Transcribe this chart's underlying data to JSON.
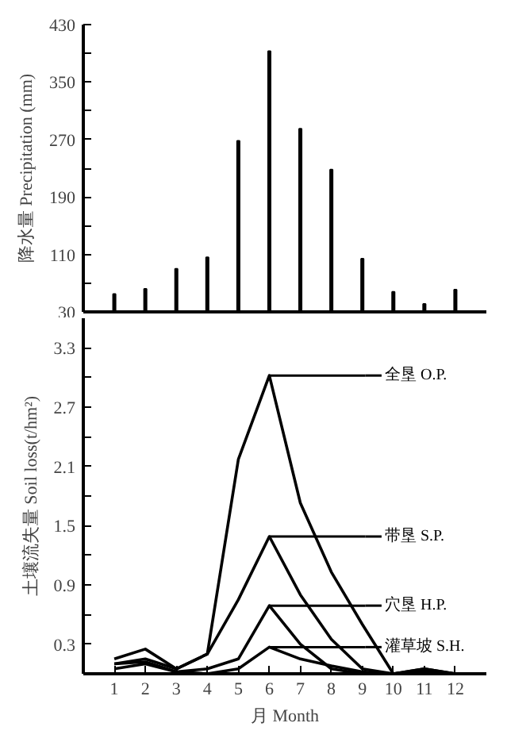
{
  "chart_data": [
    {
      "type": "bar",
      "ylabel": "降水量 Precipitation (mm)",
      "x": [
        1,
        2,
        3,
        4,
        5,
        6,
        7,
        8,
        9,
        10,
        11,
        12
      ],
      "values": [
        55,
        62,
        90,
        106,
        268,
        393,
        285,
        228,
        104,
        58,
        41,
        61
      ],
      "color": "#000000",
      "xlim": [
        0,
        13
      ],
      "ylim": [
        30,
        430
      ],
      "yticks": [
        30,
        {
          "value": 70,
          "label": null
        },
        110,
        {
          "value": 150,
          "label": null
        },
        190,
        {
          "value": 230,
          "label": null
        },
        270,
        {
          "value": 310,
          "label": null
        },
        350,
        {
          "value": 390,
          "label": null
        },
        430
      ],
      "tick_labels": "y",
      "grid": false,
      "legend": false
    },
    {
      "type": "line",
      "xlabel": "月 Month",
      "ylabel": "土壤流失量 Soil loss(t/hm²)",
      "x": [
        1,
        2,
        3,
        4,
        5,
        6,
        7,
        8,
        9,
        10,
        11,
        12
      ],
      "series": [
        {
          "name": "全垦 O.P.",
          "color": "#000000",
          "values": [
            0.15,
            0.25,
            0.05,
            0.2,
            2.17,
            3.02,
            1.73,
            1.03,
            0.5,
            0.0,
            0.05,
            0.0
          ]
        },
        {
          "name": "带垦 S.P.",
          "color": "#000000",
          "values": [
            0.1,
            0.15,
            0.05,
            0.2,
            0.75,
            1.39,
            0.8,
            0.35,
            0.05,
            0.0,
            0.05,
            0.0
          ]
        },
        {
          "name": "穴垦 H.P.",
          "color": "#000000",
          "values": [
            0.05,
            0.1,
            0.02,
            0.05,
            0.15,
            0.69,
            0.3,
            0.05,
            0.0,
            0.0,
            0.03,
            0.0
          ]
        },
        {
          "name": "灌草坡 S.H.",
          "color": "#000000",
          "values": [
            0.1,
            0.12,
            0.02,
            0.0,
            0.05,
            0.27,
            0.15,
            0.08,
            0.02,
            0.0,
            0.02,
            0.0
          ]
        }
      ],
      "xlim": [
        0,
        13
      ],
      "ylim": [
        0,
        3.6
      ],
      "xticks": [
        1,
        2,
        3,
        4,
        5,
        6,
        7,
        8,
        9,
        10,
        11,
        12
      ],
      "yticks": [
        0.3,
        {
          "value": 0.6,
          "label": null
        },
        0.9,
        {
          "value": 1.2,
          "label": null
        },
        1.5,
        {
          "value": 1.8,
          "label": null
        },
        2.1,
        {
          "value": 2.4,
          "label": null
        },
        2.7,
        {
          "value": 3.0,
          "label": null
        },
        3.3
      ],
      "grid": false,
      "legend": "right",
      "marker": "none",
      "line_style": "solid"
    }
  ]
}
